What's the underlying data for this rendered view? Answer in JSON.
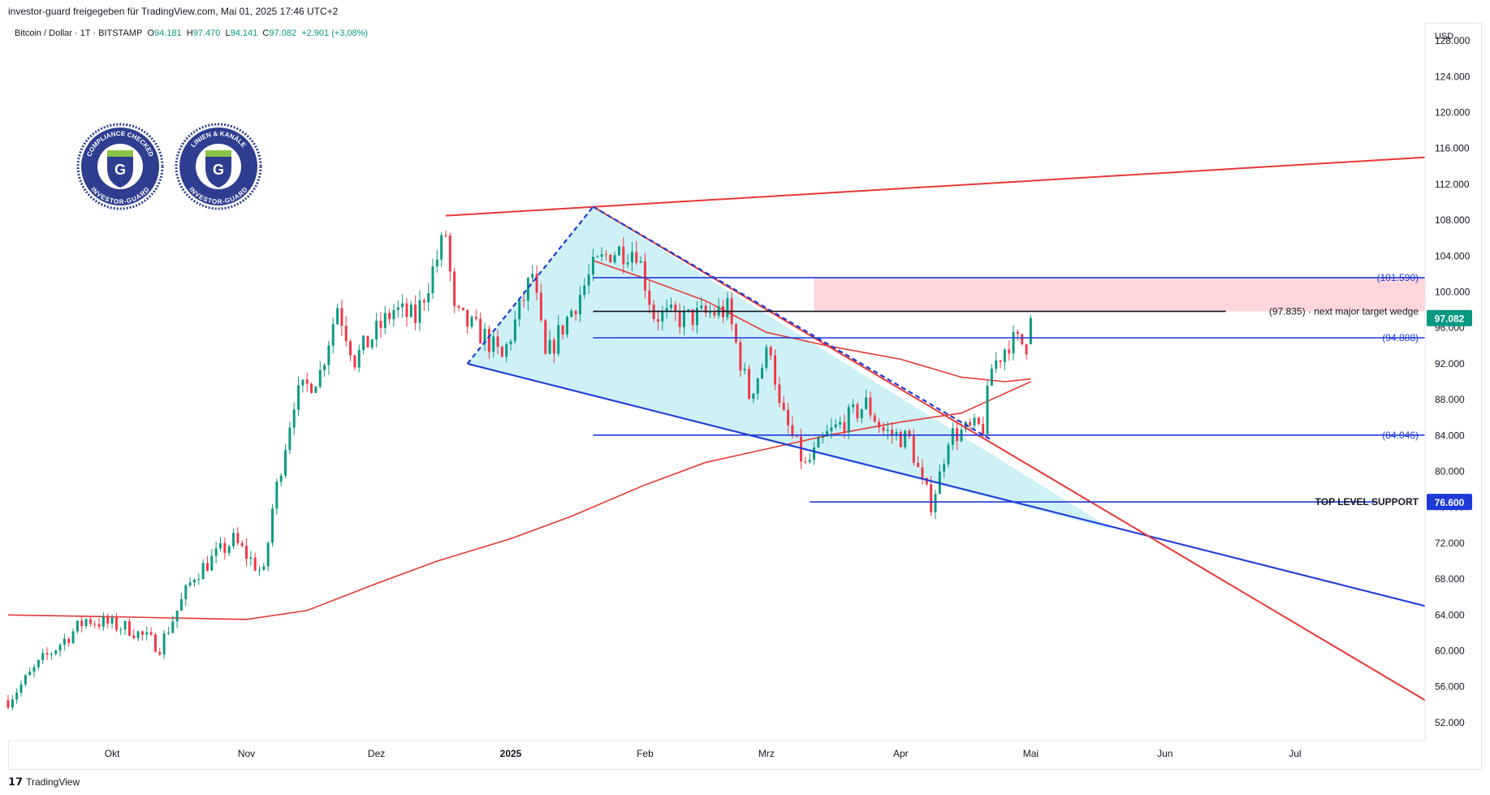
{
  "header": {
    "share_text": "investor-guard freigegeben für TradingView.com, Mai 01, 2025 17:46 UTC+2"
  },
  "legend": {
    "symbol": "Bitcoin / Dollar · 1T · BITSTAMP",
    "open_label": "O",
    "open": "94.181",
    "high_label": "H",
    "high": "97.470",
    "low_label": "L",
    "low": "94.141",
    "close_label": "C",
    "close": "97.082",
    "change": "+2.901 (+3,08%)"
  },
  "badges": [
    {
      "top_text": "COMPLIANCE CHECKED",
      "bottom_text": "INVESTOR-GUARD",
      "letter": "G"
    },
    {
      "top_text": "LINIEN & KANÄLE",
      "bottom_text": "INVESTOR-GUARD",
      "letter": "G"
    }
  ],
  "footer": {
    "brand": "TradingView"
  },
  "colors": {
    "up": "#089981",
    "down": "#f23645",
    "ma": "#e53935",
    "blue": "#1e3ad8",
    "cyan_fill": "#c6eef5",
    "pink_zone": "#ffd6dc",
    "badge": "#2e3d8f",
    "badge_green": "#8bc34a"
  },
  "chart_data": {
    "type": "candlestick",
    "currency": "USD",
    "y_range": [
      50000,
      130000
    ],
    "y_ticks": [
      {
        "value": 52000,
        "label": "52.000"
      },
      {
        "value": 56000,
        "label": "56.000"
      },
      {
        "value": 60000,
        "label": "60.000"
      },
      {
        "value": 64000,
        "label": "64.000"
      },
      {
        "value": 68000,
        "label": "68.000"
      },
      {
        "value": 72000,
        "label": "72.000"
      },
      {
        "value": 76000,
        "label": "76.000"
      },
      {
        "value": 80000,
        "label": "80.000"
      },
      {
        "value": 84000,
        "label": "84.000"
      },
      {
        "value": 88000,
        "label": "88.000"
      },
      {
        "value": 92000,
        "label": "92.000"
      },
      {
        "value": 96000,
        "label": "96.000"
      },
      {
        "value": 100000,
        "label": "100.000"
      },
      {
        "value": 104000,
        "label": "104.000"
      },
      {
        "value": 108000,
        "label": "108.000"
      },
      {
        "value": 112000,
        "label": "112.000"
      },
      {
        "value": 116000,
        "label": "116.000"
      },
      {
        "value": 120000,
        "label": "120.000"
      },
      {
        "value": 124000,
        "label": "124.000"
      },
      {
        "value": 128000,
        "label": "128.000"
      }
    ],
    "x_range": [
      "2024-09-07",
      "2025-07-31"
    ],
    "x_ticks": [
      {
        "date": "2024-10-01",
        "label": "Okt",
        "bold": false
      },
      {
        "date": "2024-11-01",
        "label": "Nov",
        "bold": false
      },
      {
        "date": "2024-12-01",
        "label": "Dez",
        "bold": false
      },
      {
        "date": "2025-01-01",
        "label": "2025",
        "bold": true
      },
      {
        "date": "2025-02-01",
        "label": "Feb",
        "bold": false
      },
      {
        "date": "2025-03-01",
        "label": "Mrz",
        "bold": false
      },
      {
        "date": "2025-04-01",
        "label": "Apr",
        "bold": false
      },
      {
        "date": "2025-05-01",
        "label": "Mai",
        "bold": false
      },
      {
        "date": "2025-06-01",
        "label": "Jun",
        "bold": false
      },
      {
        "date": "2025-07-01",
        "label": "Jul",
        "bold": false
      }
    ],
    "close_anchors": [
      [
        "2024-09-07",
        54500
      ],
      [
        "2024-09-15",
        59000
      ],
      [
        "2024-09-25",
        63500
      ],
      [
        "2024-10-05",
        62500
      ],
      [
        "2024-10-12",
        60500
      ],
      [
        "2024-10-20",
        68500
      ],
      [
        "2024-10-29",
        72300
      ],
      [
        "2024-11-05",
        68500
      ],
      [
        "2024-11-07",
        75800
      ],
      [
        "2024-11-12",
        88000
      ],
      [
        "2024-11-18",
        91000
      ],
      [
        "2024-11-22",
        98500
      ],
      [
        "2024-11-26",
        92500
      ],
      [
        "2024-12-05",
        98000
      ],
      [
        "2024-12-10",
        97000
      ],
      [
        "2024-12-17",
        106500
      ],
      [
        "2024-12-19",
        97500
      ],
      [
        "2024-12-26",
        95000
      ],
      [
        "2024-12-30",
        92500
      ],
      [
        "2025-01-06",
        102000
      ],
      [
        "2025-01-09",
        92500
      ],
      [
        "2025-01-20",
        102500
      ],
      [
        "2025-01-24",
        104500
      ],
      [
        "2025-01-30",
        104800
      ],
      [
        "2025-02-03",
        97500
      ],
      [
        "2025-02-10",
        97000
      ],
      [
        "2025-02-20",
        98000
      ],
      [
        "2025-02-25",
        88500
      ],
      [
        "2025-03-02",
        94000
      ],
      [
        "2025-03-04",
        87000
      ],
      [
        "2025-03-10",
        80500
      ],
      [
        "2025-03-15",
        84000
      ],
      [
        "2025-03-24",
        87500
      ],
      [
        "2025-03-28",
        84500
      ],
      [
        "2025-04-03",
        83500
      ],
      [
        "2025-04-06",
        78500
      ],
      [
        "2025-04-08",
        76500
      ],
      [
        "2025-04-10",
        79500
      ],
      [
        "2025-04-12",
        84000
      ],
      [
        "2025-04-20",
        85000
      ],
      [
        "2025-04-22",
        91500
      ],
      [
        "2025-04-26",
        94500
      ],
      [
        "2025-04-30",
        94200
      ],
      [
        "2025-05-01",
        97082
      ]
    ],
    "last_candle": {
      "date": "2025-05-01",
      "open": 94181,
      "high": 97470,
      "low": 94141,
      "close": 97082
    },
    "moving_averages": [
      {
        "points": [
          [
            "2024-09-07",
            64000
          ],
          [
            "2024-10-01",
            63800
          ],
          [
            "2024-11-01",
            63500
          ],
          [
            "2024-11-15",
            64500
          ],
          [
            "2024-12-01",
            67500
          ],
          [
            "2024-12-15",
            70000
          ],
          [
            "2025-01-01",
            72500
          ],
          [
            "2025-01-15",
            75000
          ],
          [
            "2025-02-01",
            78500
          ],
          [
            "2025-02-15",
            81000
          ],
          [
            "2025-03-01",
            82500
          ],
          [
            "2025-03-15",
            84000
          ],
          [
            "2025-04-01",
            85500
          ],
          [
            "2025-04-15",
            86500
          ],
          [
            "2025-05-01",
            90000
          ]
        ]
      },
      {
        "points": [
          [
            "2025-01-20",
            103500
          ],
          [
            "2025-02-01",
            101500
          ],
          [
            "2025-02-15",
            99000
          ],
          [
            "2025-03-01",
            95500
          ],
          [
            "2025-03-15",
            94000
          ],
          [
            "2025-04-01",
            92500
          ],
          [
            "2025-04-15",
            90500
          ],
          [
            "2025-04-25",
            90000
          ],
          [
            "2025-05-01",
            90300
          ]
        ]
      }
    ],
    "lines": [
      {
        "kind": "trend",
        "color": "red",
        "from": [
          "2024-12-17",
          108500
        ],
        "to": [
          "2025-07-31",
          115000
        ]
      },
      {
        "kind": "trend",
        "color": "blue",
        "from": [
          "2024-12-22",
          92000
        ],
        "to": [
          "2025-07-31",
          65000
        ]
      },
      {
        "kind": "trend",
        "color": "red",
        "from": [
          "2025-01-20",
          109500
        ],
        "to": [
          "2025-07-31",
          54500
        ]
      },
      {
        "kind": "dashed",
        "color": "blue",
        "from": [
          "2024-12-22",
          92000
        ],
        "to": [
          "2025-01-20",
          109500
        ]
      },
      {
        "kind": "dashed",
        "color": "blue",
        "from": [
          "2025-01-20",
          109500
        ],
        "to": [
          "2025-04-22",
          83500
        ]
      }
    ],
    "wedge_fill": [
      [
        "2024-12-22",
        92000
      ],
      [
        "2025-01-20",
        109500
      ],
      [
        "2025-05-20",
        73500
      ]
    ],
    "target_zone": {
      "from_date": "2025-03-12",
      "to_date": "2025-07-31",
      "low": 97835,
      "high": 101590
    },
    "levels": [
      {
        "value": 101590,
        "from_date": "2025-01-20",
        "label": "(101.590)",
        "color": "blue"
      },
      {
        "value": 97835,
        "from_date": "2025-01-20",
        "to_date": "2025-06-15",
        "label": "(97.835) · next major target wedge",
        "color": "black"
      },
      {
        "value": 94888,
        "from_date": "2025-01-20",
        "label": "(94.888)",
        "color": "blue"
      },
      {
        "value": 84046,
        "from_date": "2025-01-20",
        "label": "(84.046)",
        "color": "blue"
      },
      {
        "value": 76600,
        "from_date": "2025-03-11",
        "to_date": "2025-07-20",
        "label": "TOP LEVEL SUPPORT",
        "color": "blue",
        "bold": true
      }
    ],
    "price_tags": [
      {
        "value": 97082,
        "label": "97.082",
        "bg": "#089981"
      },
      {
        "value": 76600,
        "label": "76.600",
        "bg": "#1e3ad8"
      }
    ]
  }
}
